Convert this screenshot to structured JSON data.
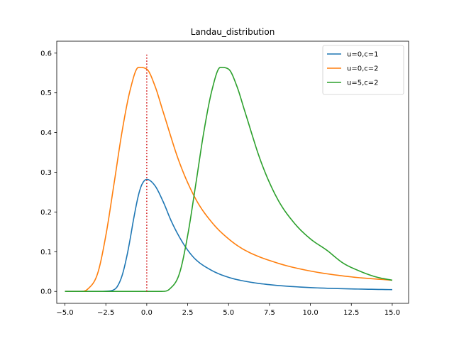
{
  "chart_data": {
    "type": "line",
    "title": "Landau_distribution",
    "xlabel": "",
    "ylabel": "",
    "xlim": [
      -5.5,
      16
    ],
    "ylim": [
      -0.03,
      0.63
    ],
    "xticks": [
      -5.0,
      -2.5,
      0.0,
      2.5,
      5.0,
      7.5,
      10.0,
      12.5,
      15.0
    ],
    "xtick_labels": [
      "−5.0",
      "−2.5",
      "0.0",
      "2.5",
      "5.0",
      "7.5",
      "10.0",
      "12.5",
      "15.0"
    ],
    "yticks": [
      0.0,
      0.1,
      0.2,
      0.3,
      0.4,
      0.5,
      0.6
    ],
    "ytick_labels": [
      "0.0",
      "0.1",
      "0.2",
      "0.3",
      "0.4",
      "0.5",
      "0.6"
    ],
    "grid": false,
    "legend_position": "top-right",
    "series": [
      {
        "name": "u=0,c=1",
        "color": "#1f77b4",
        "x": [
          -5.0,
          -3.0,
          -2.5,
          -2.0,
          -1.8,
          -1.5,
          -1.2,
          -1.0,
          -0.8,
          -0.5,
          -0.3,
          0.0,
          0.5,
          1.0,
          1.5,
          2.0,
          2.5,
          3.0,
          4.0,
          5.0,
          6.0,
          7.5,
          10.0,
          12.5,
          15.0
        ],
        "y": [
          0.0,
          0.0,
          0.0006,
          0.0045,
          0.0124,
          0.0409,
          0.0919,
          0.1355,
          0.183,
          0.2436,
          0.2689,
          0.2821,
          0.2663,
          0.2262,
          0.177,
          0.1366,
          0.1041,
          0.08,
          0.0522,
          0.0355,
          0.0257,
          0.017,
          0.0097,
          0.0064,
          0.0045
        ]
      },
      {
        "name": "u=0,c=2",
        "color": "#ff7f0e",
        "x": [
          -5.0,
          -4.0,
          -3.6,
          -3.0,
          -2.5,
          -2.0,
          -1.5,
          -1.0,
          -0.5,
          0.0,
          0.5,
          1.0,
          2.0,
          3.0,
          4.0,
          5.0,
          6.0,
          8.0,
          10.0,
          12.5,
          15.0
        ],
        "y": [
          0.0,
          0.0002,
          0.0062,
          0.0455,
          0.1409,
          0.2711,
          0.4047,
          0.5095,
          0.5642,
          0.5597,
          0.5174,
          0.4524,
          0.3243,
          0.232,
          0.1728,
          0.1323,
          0.1038,
          0.0713,
          0.0514,
          0.0366,
          0.0282
        ]
      },
      {
        "name": "u=5,c=2",
        "color": "#2ca02c",
        "x": [
          -5.0,
          0.0,
          1.0,
          1.4,
          2.0,
          2.5,
          3.0,
          3.5,
          4.0,
          4.5,
          5.0,
          5.5,
          6.0,
          7.0,
          8.0,
          9.0,
          10.0,
          11.0,
          12.0,
          13.0,
          14.0,
          15.0
        ],
        "y": [
          0.0,
          0.0,
          0.0002,
          0.0062,
          0.0455,
          0.1409,
          0.2711,
          0.4047,
          0.5095,
          0.5642,
          0.5597,
          0.5174,
          0.4524,
          0.3243,
          0.232,
          0.1728,
          0.1323,
          0.1038,
          0.0713,
          0.0514,
          0.0366,
          0.0282
        ]
      }
    ],
    "annotations": [
      {
        "type": "vline",
        "x": 0.0,
        "y_range": [
          0.0,
          0.6
        ],
        "style": "dotted",
        "color": "#d62728"
      }
    ]
  }
}
